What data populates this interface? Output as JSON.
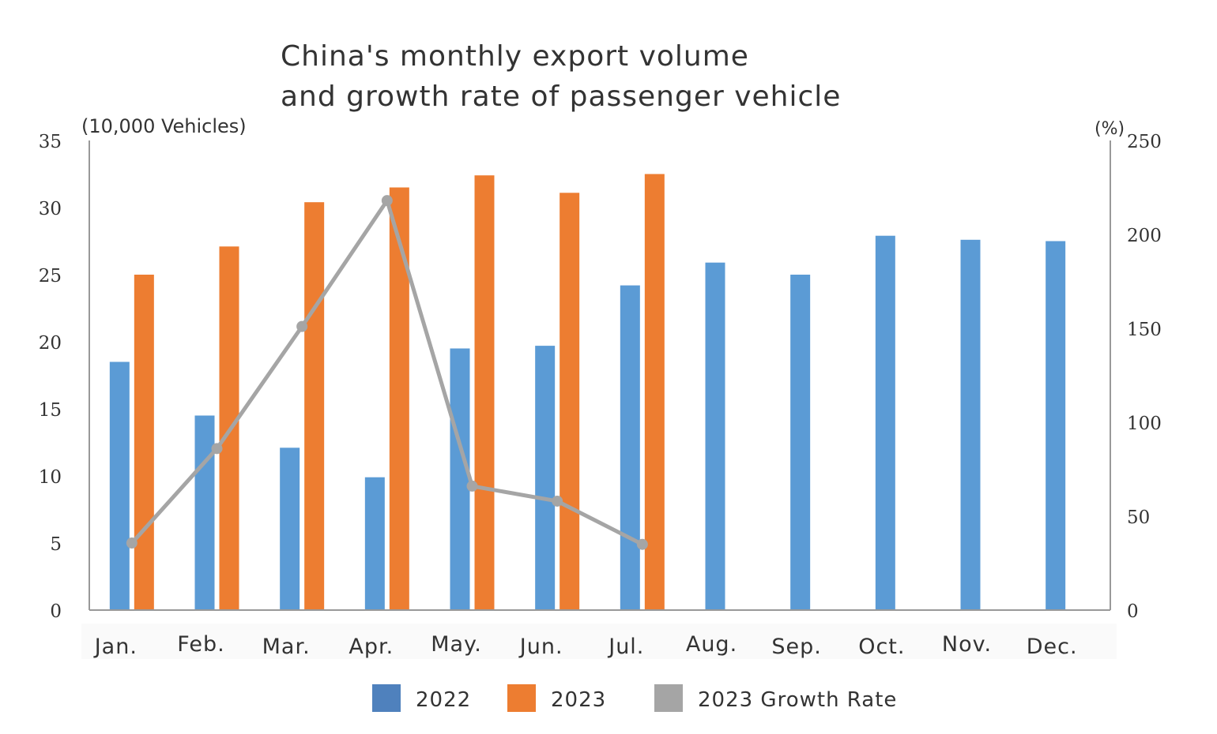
{
  "chart_data": {
    "type": "bar+line",
    "title": "China's monthly export volume and growth rate of passenger vehicle",
    "title_lines": [
      "China's monthly export volume",
      "and growth rate of passenger vehicle"
    ],
    "ylabel_left": "(10,000 Vehicles)",
    "ylabel_right": "(%)",
    "ylim_left": [
      0,
      35
    ],
    "ylim_right": [
      0,
      250
    ],
    "yticks_left": [
      "0",
      "5",
      "10",
      "15",
      "20",
      "25",
      "30",
      "35"
    ],
    "yticks_right": [
      "0",
      "50",
      "100",
      "150",
      "200",
      "250"
    ],
    "categories": [
      "Jan.",
      "Feb.",
      "Mar.",
      "Apr.",
      "May.",
      "Jun.",
      "Jul.",
      "Aug.",
      "Sep.",
      "Oct.",
      "Nov.",
      "Dec."
    ],
    "series": [
      {
        "name": "2022",
        "type": "bar",
        "axis": "left",
        "color": "#5b9bd5",
        "values": [
          18.5,
          14.5,
          12.1,
          9.9,
          19.5,
          19.7,
          24.2,
          25.9,
          25.0,
          27.9,
          27.6,
          27.5
        ]
      },
      {
        "name": "2023",
        "type": "bar",
        "axis": "left",
        "color": "#ed7d31",
        "values": [
          25.0,
          27.1,
          30.4,
          31.5,
          32.4,
          31.1,
          32.5,
          null,
          null,
          null,
          null,
          null
        ]
      },
      {
        "name": "2023 Growth Rate",
        "type": "line",
        "axis": "right",
        "color": "#a5a5a5",
        "values": [
          35.7,
          86,
          151,
          218,
          66,
          58,
          35,
          null,
          null,
          null,
          null,
          null
        ]
      }
    ],
    "legend_position": "bottom",
    "grid": false
  }
}
